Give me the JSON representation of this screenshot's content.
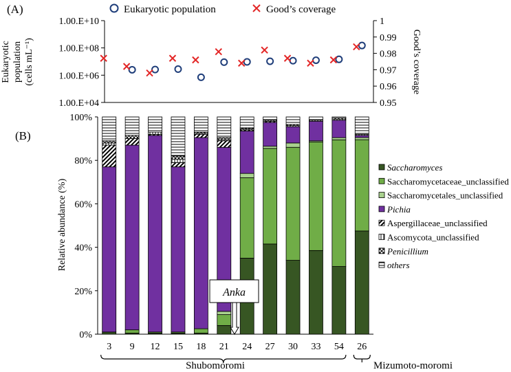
{
  "chart_data": [
    {
      "type": "scatter",
      "panel_label": "(A)",
      "series": [
        {
          "name": "Eukaryotic population",
          "marker": "circle",
          "axis": "left",
          "values": [
            2500000.0,
            2600000.0,
            2800000.0,
            700000.0,
            9000000.0,
            9500000.0,
            10500000.0,
            11500000.0,
            12500000.0,
            14500000.0,
            150000000.0
          ]
        },
        {
          "name": "Good’s coverage",
          "marker": "x",
          "axis": "right",
          "values": [
            0.977,
            0.972,
            0.968,
            0.977,
            0.976,
            0.981,
            0.974,
            0.982,
            0.977,
            0.974,
            0.976,
            0.984
          ]
        }
      ],
      "left_axis": {
        "label_lines": [
          "Eukaryotic",
          "population",
          "(cells mL⁻¹)"
        ],
        "scale": "log",
        "ticks": [
          "1.00.E+04",
          "1.00.E+06",
          "1.00.E+08",
          "1.00.E+10"
        ]
      },
      "right_axis": {
        "label": "Good’s coverage",
        "ylim": [
          0.95,
          1.0
        ],
        "ticks": [
          "0.95",
          "0.96",
          "0.97",
          "0.98",
          "0.99",
          "1"
        ]
      }
    },
    {
      "type": "bar",
      "stacked": true,
      "panel_label": "(B)",
      "ylabel": "Relative abundance (%)",
      "yticks": [
        "0%",
        "20%",
        "40%",
        "60%",
        "80%",
        "100%"
      ],
      "categories": [
        "3",
        "9",
        "12",
        "15",
        "18",
        "21",
        "24",
        "27",
        "30",
        "33",
        "54",
        "26"
      ],
      "series": [
        {
          "name": "Saccharomyces",
          "italic": true,
          "color": "#375623",
          "pattern": "solid",
          "values": [
            1,
            0.5,
            0.5,
            0.5,
            0.5,
            4,
            35,
            41.5,
            34,
            38.5,
            31,
            47.5
          ]
        },
        {
          "name": "Saccharomycetaceae_unclassified",
          "italic": false,
          "color": "#70ad47",
          "pattern": "solid",
          "values": [
            0,
            1.5,
            0.5,
            0.5,
            2,
            5,
            37,
            44,
            52,
            50,
            58,
            42
          ]
        },
        {
          "name": "Saccharomycetales_unclassified",
          "italic": false,
          "color": "#a9d18e",
          "pattern": "solid",
          "values": [
            0,
            0,
            0,
            0,
            0,
            1.5,
            2,
            1,
            2,
            0.5,
            1,
            1
          ]
        },
        {
          "name": "Pichia",
          "italic": true,
          "color": "#7030a0",
          "pattern": "solid",
          "values": [
            76,
            85,
            90.5,
            76,
            88,
            75.5,
            19.5,
            11,
            7.5,
            9,
            8,
            1
          ]
        },
        {
          "name": "Aspergillaceae_unclassified",
          "italic": false,
          "color": "#000000",
          "pattern": "diag",
          "values": [
            10,
            3,
            0.5,
            2,
            1.5,
            3,
            0.5,
            0.5,
            0,
            0,
            0,
            0
          ]
        },
        {
          "name": "Ascomycota_unclassified",
          "italic": false,
          "color": "#000000",
          "pattern": "vert",
          "values": [
            1,
            0,
            1,
            1.5,
            0.5,
            0.5,
            0.5,
            0.5,
            0.5,
            0.5,
            0.5,
            0.5
          ]
        },
        {
          "name": "Penicillium",
          "italic": true,
          "color": "#000000",
          "pattern": "cross",
          "values": [
            1,
            1.5,
            0,
            1.5,
            0.5,
            1,
            0.5,
            0,
            0.5,
            0,
            0.5,
            0
          ]
        },
        {
          "name": "others",
          "italic": true,
          "color": "#000000",
          "pattern": "horiz",
          "values": [
            11,
            8.5,
            7,
            18,
            7,
            9.5,
            5,
            1.5,
            3.5,
            1.5,
            0.5,
            8
          ]
        }
      ],
      "annotation": {
        "text": "Anka",
        "italic": true
      },
      "groups": [
        {
          "name": "Shubomoromi",
          "categories": [
            "3",
            "9",
            "12",
            "15",
            "18",
            "21",
            "24",
            "27",
            "30",
            "33",
            "54"
          ]
        },
        {
          "name": "Mizumoto-moromi",
          "categories": [
            "26"
          ]
        }
      ]
    }
  ]
}
